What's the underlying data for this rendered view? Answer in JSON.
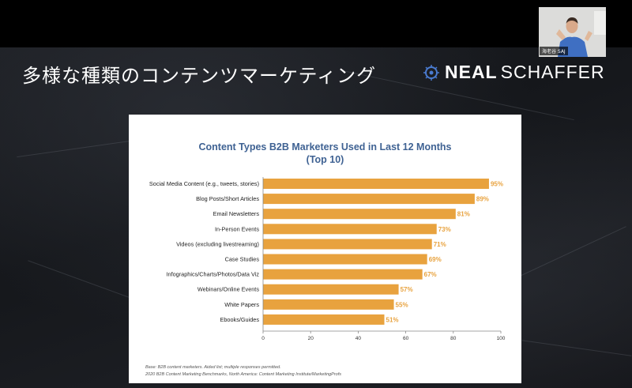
{
  "slide": {
    "title": "多様な種類のコンテンツマーケティング",
    "brand": {
      "part1": "NEAL",
      "part2": "SCHAFFER",
      "icon": "brain-circuit-icon"
    }
  },
  "webcam": {
    "name_label": "海老谷 SAJ"
  },
  "colors": {
    "bar": "#e8a23e",
    "bar_label": "#e8a23e",
    "title": "#3f6293",
    "background": "#16181c"
  },
  "chart_data": {
    "type": "bar",
    "orientation": "horizontal",
    "title_line1": "Content Types B2B Marketers Used in Last 12 Months",
    "title_line2": "(Top 10)",
    "categories": [
      "Social Media Content (e.g., tweets, stories)",
      "Blog Posts/Short Articles",
      "Email Newsletters",
      "In-Person Events",
      "Videos (excluding livestreaming)",
      "Case Studies",
      "Infographics/Charts/Photos/Data Viz",
      "Webinars/Online Events",
      "White Papers",
      "Ebooks/Guides"
    ],
    "values": [
      95,
      89,
      81,
      73,
      71,
      69,
      67,
      57,
      55,
      51
    ],
    "value_labels": [
      "95%",
      "89%",
      "81%",
      "73%",
      "71%",
      "69%",
      "67%",
      "57%",
      "55%",
      "51%"
    ],
    "x_ticks": [
      "0",
      "20",
      "40",
      "60",
      "80",
      "100"
    ],
    "xlim": [
      0,
      100
    ],
    "grid": false,
    "footnote_line1": "Base: B2B content marketers. Aided list; multiple responses permitted.",
    "footnote_line2": "2020 B2B Content Marketing Benchmarks, North America: Content Marketing Institute/MarketingProfs"
  }
}
